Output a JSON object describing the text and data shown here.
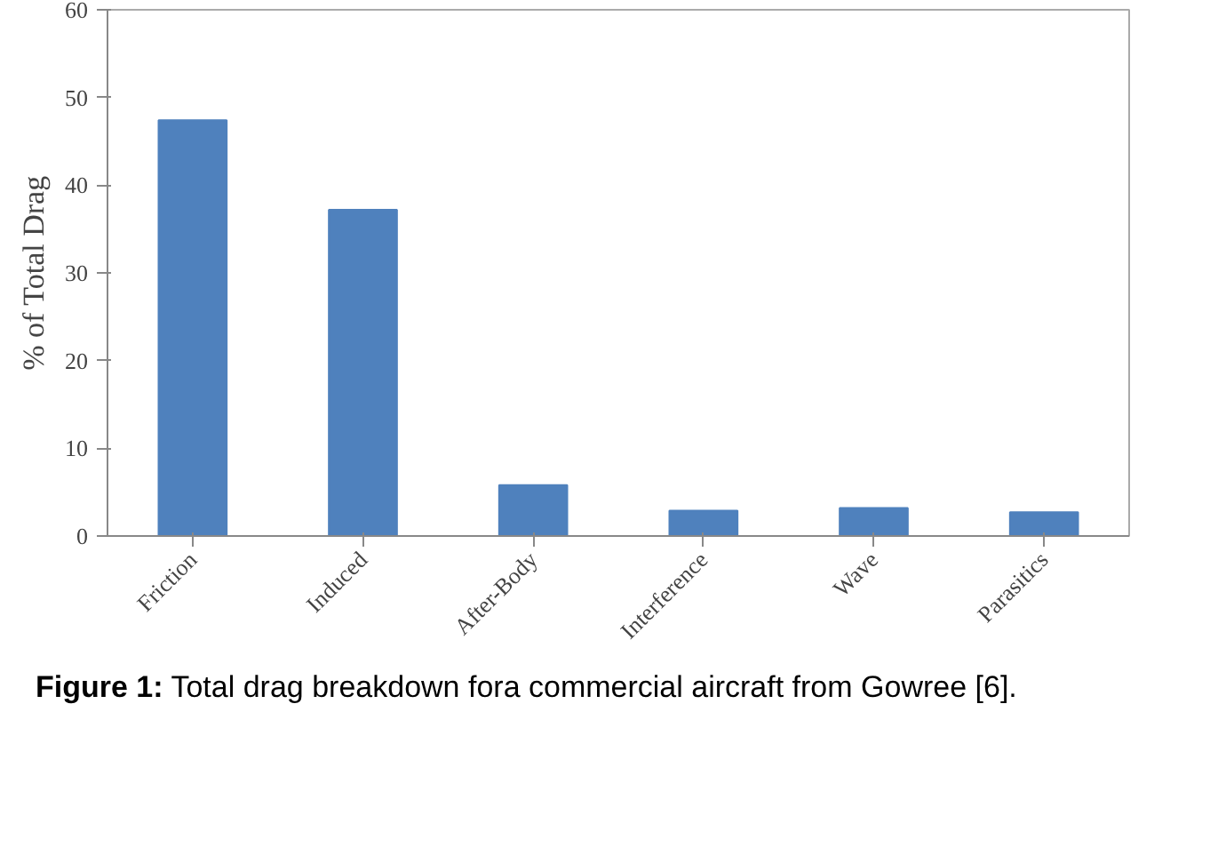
{
  "chart_data": {
    "type": "bar",
    "ylabel": "% of Total Drag",
    "categories": [
      "Friction",
      "Induced",
      "After-Body",
      "Interference",
      "Wave",
      "Parasitics"
    ],
    "values": [
      47.4,
      37.2,
      5.8,
      2.9,
      3.2,
      2.7
    ],
    "color": "#4f81bd",
    "ylim": [
      0,
      60
    ],
    "yticks": [
      0,
      10,
      20,
      30,
      40,
      50,
      60
    ],
    "grid": false,
    "annotations": [
      "Figure 1: Total drag breakdown fora commercial aircraft from Gowree [6]."
    ]
  }
}
